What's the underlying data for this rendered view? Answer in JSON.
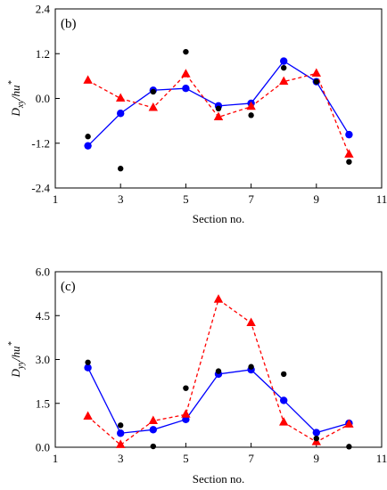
{
  "chart_data": [
    {
      "type": "line",
      "panel_label": "(b)",
      "ylabel": "D_xy/hu*",
      "ylabel_parts": {
        "main": "D",
        "sub": "xy",
        "mid": "/hu",
        "sup": "*"
      },
      "xlabel": "Section no.",
      "xlim": [
        1,
        11
      ],
      "ylim": [
        -2.4,
        2.4
      ],
      "xticks": [
        1,
        3,
        5,
        7,
        9,
        11
      ],
      "yticks": [
        -2.4,
        -1.2,
        0.0,
        1.2,
        2.4
      ],
      "ytick_labels": [
        "-2.4",
        "-1.2",
        "0.0",
        "1.2",
        "2.4"
      ],
      "grid": false,
      "legend": "none",
      "series": [
        {
          "style": "blue-solid-circle",
          "color": "#0000ff",
          "x": [
            2,
            3,
            4,
            5,
            6,
            7,
            8,
            9,
            10
          ],
          "y": [
            -1.27,
            -0.4,
            0.22,
            0.27,
            -0.2,
            -0.13,
            1.0,
            0.45,
            -0.97
          ]
        },
        {
          "style": "red-dashed-triangle",
          "color": "#ff0000",
          "x": [
            2,
            3,
            4,
            5,
            6,
            7,
            8,
            9,
            10
          ],
          "y": [
            0.48,
            0.0,
            -0.25,
            0.65,
            -0.5,
            -0.22,
            0.45,
            0.67,
            -1.5
          ]
        },
        {
          "style": "black-dot",
          "color": "#000000",
          "x": [
            2,
            3,
            4,
            5,
            6,
            7,
            8,
            9,
            10
          ],
          "y": [
            -1.02,
            -1.88,
            0.18,
            1.25,
            -0.27,
            -0.45,
            0.82,
            0.45,
            -1.7
          ]
        }
      ]
    },
    {
      "type": "line",
      "panel_label": "(c)",
      "ylabel": "D_yy/hu*",
      "ylabel_parts": {
        "main": "D",
        "sub": "yy",
        "mid": "/hu",
        "sup": "*"
      },
      "xlabel": "Section no.",
      "xlim": [
        1,
        11
      ],
      "ylim": [
        0,
        6
      ],
      "xticks": [
        1,
        3,
        5,
        7,
        9,
        11
      ],
      "yticks": [
        0.0,
        1.5,
        3.0,
        4.5,
        6.0
      ],
      "ytick_labels": [
        "0.0",
        "1.5",
        "3.0",
        "4.5",
        "6.0"
      ],
      "grid": false,
      "legend": "none",
      "series": [
        {
          "style": "blue-solid-circle",
          "color": "#0000ff",
          "x": [
            2,
            3,
            4,
            5,
            6,
            7,
            8,
            9,
            10
          ],
          "y": [
            2.72,
            0.48,
            0.6,
            0.95,
            2.5,
            2.65,
            1.6,
            0.5,
            0.82
          ]
        },
        {
          "style": "red-dashed-triangle",
          "color": "#ff0000",
          "x": [
            2,
            3,
            4,
            5,
            6,
            7,
            8,
            9,
            10
          ],
          "y": [
            1.05,
            0.08,
            0.9,
            1.12,
            5.05,
            4.25,
            0.85,
            0.18,
            0.78
          ]
        },
        {
          "style": "black-dot",
          "color": "#000000",
          "x": [
            2,
            3,
            4,
            5,
            6,
            7,
            8,
            9,
            10
          ],
          "y": [
            2.9,
            0.75,
            0.03,
            2.02,
            2.6,
            2.75,
            2.5,
            0.3,
            0.02
          ]
        }
      ]
    }
  ]
}
